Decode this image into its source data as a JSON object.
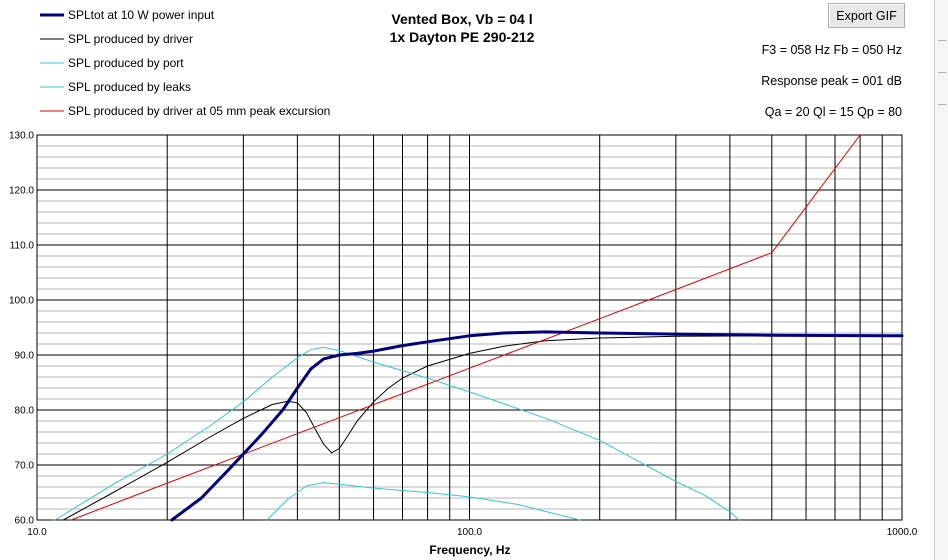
{
  "header": {
    "title_line1": "Vented Box, Vb = 04 l",
    "title_line2": "1x Dayton PE 290-212",
    "export_label": "Export GIF",
    "info_f3_fb": "F3 = 058 Hz  Fb = 050 Hz",
    "info_peak": "Response peak = 001 dB",
    "info_q": "Qa = 20  Ql = 15  Qp = 80"
  },
  "colors": {
    "total": "#000080",
    "driver": "#000000",
    "port": "#33c7d6",
    "leaks": "#33c7d6",
    "excursion": "#e00000",
    "grid_major": "#000000",
    "grid_minor": "#b4b4b4"
  },
  "chart_data": {
    "type": "line",
    "title": "Vented Box, Vb = 04 l",
    "subtitle": "1x Dayton PE 290-212",
    "xlabel": "Frequency, Hz",
    "ylabel": "",
    "xscale": "log",
    "xlim": [
      10,
      1000
    ],
    "ylim": [
      60,
      130
    ],
    "grid": true,
    "legend_position": "top-left",
    "x_ticks": [
      {
        "value": 10,
        "label": "10.0"
      },
      {
        "value": 100,
        "label": "100.0"
      },
      {
        "value": 1000,
        "label": "1000.0"
      }
    ],
    "y_ticks": [
      {
        "value": 60,
        "label": "60.0"
      },
      {
        "value": 70,
        "label": "70.0"
      },
      {
        "value": 80,
        "label": "80.0"
      },
      {
        "value": 90,
        "label": "90.0"
      },
      {
        "value": 100,
        "label": "100.0"
      },
      {
        "value": 110,
        "label": "110.0"
      },
      {
        "value": 120,
        "label": "120.0"
      },
      {
        "value": 130,
        "label": "130.0"
      }
    ],
    "series": [
      {
        "name": "SPLtot at 10 W power input",
        "color": "#000080",
        "width": 3,
        "points": [
          [
            20.5,
            60
          ],
          [
            24,
            64
          ],
          [
            28,
            69.5
          ],
          [
            33,
            75.5
          ],
          [
            37,
            80
          ],
          [
            40,
            84
          ],
          [
            43,
            87.5
          ],
          [
            46,
            89.3
          ],
          [
            50,
            90
          ],
          [
            55,
            90.3
          ],
          [
            60,
            90.7
          ],
          [
            70,
            91.7
          ],
          [
            80,
            92.4
          ],
          [
            100,
            93.5
          ],
          [
            120,
            94
          ],
          [
            150,
            94.2
          ],
          [
            200,
            94
          ],
          [
            300,
            93.8
          ],
          [
            500,
            93.6
          ],
          [
            1000,
            93.5
          ]
        ]
      },
      {
        "name": "SPL produced by driver",
        "color": "#000000",
        "width": 1,
        "points": [
          [
            11.5,
            60
          ],
          [
            15,
            65
          ],
          [
            20,
            70.5
          ],
          [
            25,
            75
          ],
          [
            30,
            78.5
          ],
          [
            35,
            81
          ],
          [
            38,
            81.6
          ],
          [
            40,
            81.3
          ],
          [
            42,
            79.5
          ],
          [
            44,
            76.5
          ],
          [
            46,
            73.8
          ],
          [
            48,
            72.2
          ],
          [
            50,
            73
          ],
          [
            52,
            75
          ],
          [
            55,
            78
          ],
          [
            60,
            81.5
          ],
          [
            65,
            84
          ],
          [
            70,
            85.8
          ],
          [
            80,
            88
          ],
          [
            100,
            90.3
          ],
          [
            120,
            91.6
          ],
          [
            150,
            92.6
          ],
          [
            200,
            93.1
          ],
          [
            300,
            93.4
          ],
          [
            500,
            93.5
          ],
          [
            1000,
            93.5
          ]
        ]
      },
      {
        "name": "SPL produced by port",
        "color": "#33c7d6",
        "width": 1,
        "points": [
          [
            11,
            60
          ],
          [
            15,
            66.5
          ],
          [
            20,
            72
          ],
          [
            25,
            77
          ],
          [
            30,
            81.5
          ],
          [
            35,
            86
          ],
          [
            40,
            89.5
          ],
          [
            43,
            91
          ],
          [
            46,
            91.4
          ],
          [
            50,
            90.8
          ],
          [
            60,
            88.7
          ],
          [
            80,
            85.8
          ],
          [
            100,
            83.3
          ],
          [
            150,
            78.5
          ],
          [
            200,
            74.5
          ],
          [
            300,
            67
          ],
          [
            350,
            64.5
          ],
          [
            400,
            61.5
          ],
          [
            420,
            60
          ]
        ]
      },
      {
        "name": "SPL produced by leaks",
        "color": "#33c7d6",
        "width": 1,
        "points": [
          [
            34,
            60
          ],
          [
            38,
            63.8
          ],
          [
            42,
            66.2
          ],
          [
            46,
            66.8
          ],
          [
            50,
            66.5
          ],
          [
            60,
            65.8
          ],
          [
            80,
            65
          ],
          [
            100,
            64.2
          ],
          [
            130,
            62.8
          ],
          [
            160,
            61
          ],
          [
            180,
            60
          ]
        ]
      },
      {
        "name": "SPL produced by driver at 05 mm peak excursion",
        "color": "#e00000",
        "width": 1,
        "points": [
          [
            12,
            60
          ],
          [
            20,
            66.7
          ],
          [
            50,
            78.6
          ],
          [
            100,
            87.6
          ],
          [
            200,
            96.6
          ],
          [
            500,
            108.6
          ],
          [
            800,
            130
          ]
        ]
      }
    ]
  }
}
